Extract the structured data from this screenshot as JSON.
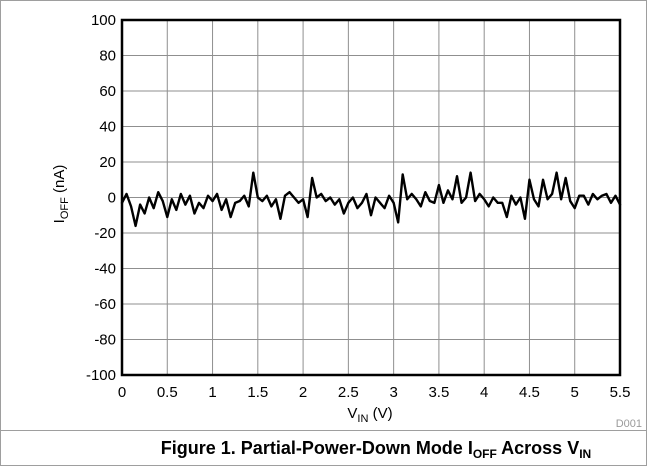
{
  "chart_data": {
    "type": "line",
    "figure_id": "D001",
    "caption": {
      "prefix": "Figure 1. Partial-Power-Down Mode I",
      "sub1": "OFF",
      "middle": " Across V",
      "sub2": "IN"
    },
    "xlabel": {
      "main": "V",
      "sub": "IN",
      "unit": " (V)"
    },
    "ylabel": {
      "main": "I",
      "sub": "OFF",
      "unit": " (nA)"
    },
    "xlim": [
      0,
      5.5
    ],
    "ylim": [
      -100,
      100
    ],
    "x_ticks": [
      "0",
      "0.5",
      "1",
      "1.5",
      "2",
      "2.5",
      "3",
      "3.5",
      "4",
      "4.5",
      "5",
      "5.5"
    ],
    "y_ticks": [
      "100",
      "80",
      "60",
      "40",
      "20",
      "0",
      "-20",
      "-40",
      "-60",
      "-80",
      "-100"
    ],
    "grid": true,
    "series": [
      {
        "color": "#000000",
        "x": [
          0,
          0.05,
          0.1,
          0.15,
          0.2,
          0.25,
          0.3,
          0.35,
          0.4,
          0.45,
          0.5,
          0.55,
          0.6,
          0.65,
          0.7,
          0.75,
          0.8,
          0.85,
          0.9,
          0.95,
          1,
          1.05,
          1.1,
          1.15,
          1.2,
          1.25,
          1.3,
          1.35,
          1.4,
          1.45,
          1.5,
          1.55,
          1.6,
          1.65,
          1.7,
          1.75,
          1.8,
          1.85,
          1.9,
          1.95,
          2,
          2.05,
          2.1,
          2.15,
          2.2,
          2.25,
          2.3,
          2.35,
          2.4,
          2.45,
          2.5,
          2.55,
          2.6,
          2.65,
          2.7,
          2.75,
          2.8,
          2.85,
          2.9,
          2.95,
          3,
          3.05,
          3.1,
          3.15,
          3.2,
          3.25,
          3.3,
          3.35,
          3.4,
          3.45,
          3.5,
          3.55,
          3.6,
          3.65,
          3.7,
          3.75,
          3.8,
          3.85,
          3.9,
          3.95,
          4,
          4.05,
          4.1,
          4.15,
          4.2,
          4.25,
          4.3,
          4.35,
          4.4,
          4.45,
          4.5,
          4.55,
          4.6,
          4.65,
          4.7,
          4.75,
          4.8,
          4.85,
          4.9,
          4.95,
          5,
          5.05,
          5.1,
          5.15,
          5.2,
          5.25,
          5.3,
          5.35,
          5.4,
          5.45,
          5.5
        ],
        "y": [
          -3,
          2,
          -5,
          -16,
          -4,
          -9,
          0,
          -6,
          3,
          -2,
          -11,
          -1,
          -7,
          2,
          -4,
          1,
          -9,
          -3,
          -6,
          1,
          -2,
          2,
          -7,
          -1,
          -11,
          -3,
          -2,
          1,
          -5,
          14,
          0,
          -2,
          1,
          -5,
          -1,
          -12,
          1,
          3,
          0,
          -3,
          -1,
          -11,
          11,
          0,
          2,
          -2,
          0,
          -4,
          -1,
          -9,
          -3,
          0,
          -6,
          -3,
          2,
          -10,
          0,
          -3,
          -6,
          1,
          -3,
          -14,
          13,
          -1,
          2,
          -1,
          -5,
          3,
          -2,
          -3,
          7,
          -3,
          4,
          -1,
          12,
          -3,
          0,
          14,
          -2,
          2,
          -1,
          -5,
          0,
          -3,
          -3,
          -11,
          1,
          -4,
          0,
          -12,
          10,
          -1,
          -5,
          10,
          -1,
          2,
          14,
          -1,
          11,
          -2,
          -6,
          1,
          1,
          -4,
          2,
          -1,
          1,
          2,
          -3,
          1,
          -4
        ]
      }
    ]
  }
}
